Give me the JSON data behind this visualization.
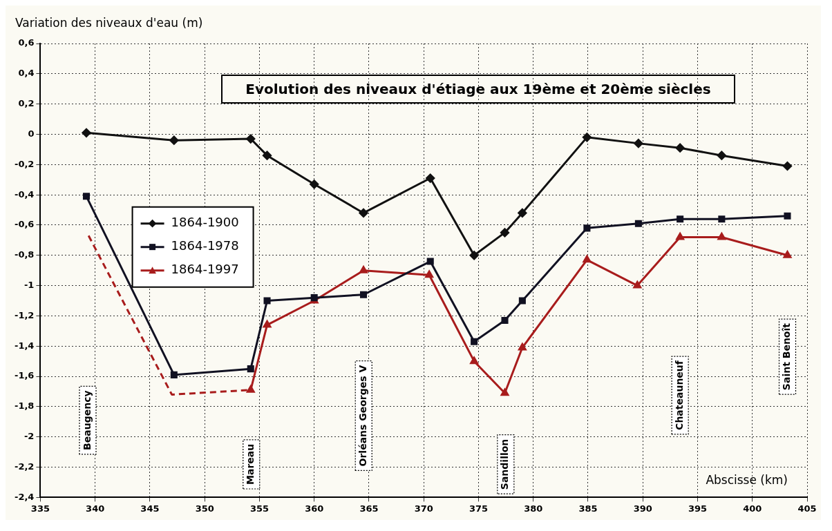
{
  "chart_data": {
    "type": "line",
    "title": "Evolution des niveaux d'étiage aux 19ème et 20ème siècles",
    "xlabel": "Abscisse (km)",
    "ylabel": "Variation des niveaux d'eau (m)",
    "xlim": [
      335,
      405
    ],
    "xticks": [
      335,
      340,
      345,
      350,
      355,
      360,
      365,
      370,
      375,
      380,
      385,
      390,
      395,
      400,
      405
    ],
    "ylim": [
      -2.4,
      0.6
    ],
    "yticks": [
      {
        "value": -2.4,
        "label": "-2,4"
      },
      {
        "value": -2.2,
        "label": "-2,2"
      },
      {
        "value": -2,
        "label": "-2"
      },
      {
        "value": -1.8,
        "label": "-1,8"
      },
      {
        "value": -1.6,
        "label": "-1,6"
      },
      {
        "value": -1.4,
        "label": "-1,4"
      },
      {
        "value": -1.2,
        "label": "-1,2"
      },
      {
        "value": -1,
        "label": "-1"
      },
      {
        "value": -0.8,
        "label": "-0,8"
      },
      {
        "value": -0.6,
        "label": "-0,6"
      },
      {
        "value": -0.4,
        "label": "-0,4"
      },
      {
        "value": -0.2,
        "label": "-0,2"
      },
      0,
      {
        "value": 0.2,
        "label": "0,2"
      },
      {
        "value": 0.4,
        "label": "0,4"
      },
      {
        "value": 0.6,
        "label": "0,6"
      }
    ],
    "grid": true,
    "legend": "left",
    "series": [
      {
        "name": "1864-1900",
        "color": "#111111",
        "marker": "diamond",
        "line_style": "solid",
        "x": [
          339.2,
          347.2,
          354.2,
          355.7,
          360,
          364.5,
          370.6,
          374.6,
          377.4,
          379,
          384.9,
          389.6,
          393.4,
          397.2,
          403.2
        ],
        "values": [
          0.01,
          -0.04,
          -0.03,
          -0.14,
          -0.33,
          -0.52,
          -0.29,
          -0.8,
          -0.65,
          -0.52,
          -0.02,
          -0.06,
          -0.09,
          -0.14,
          -0.21
        ]
      },
      {
        "name": "1864-1978",
        "color": "#111122",
        "marker": "square",
        "line_style": "solid",
        "x": [
          339.2,
          347.2,
          354.2,
          355.7,
          360,
          364.5,
          370.6,
          374.6,
          377.4,
          379,
          384.9,
          389.6,
          393.4,
          397.2,
          403.2
        ],
        "values": [
          -0.41,
          -1.59,
          -1.55,
          -1.1,
          -1.08,
          -1.06,
          -0.84,
          -1.37,
          -1.23,
          -1.1,
          -0.62,
          -0.59,
          -0.56,
          -0.56,
          -0.54
        ]
      },
      {
        "name": "1864-1997",
        "color": "#a81c1c",
        "marker": "triangle",
        "line_style": "solid",
        "x": [
          354.2,
          355.7,
          360,
          364.5,
          370.5,
          374.6,
          377.4,
          379,
          384.9,
          389.5,
          393.4,
          397.2,
          403.2
        ],
        "values": [
          -1.69,
          -1.26,
          -1.1,
          -0.9,
          -0.93,
          -1.5,
          -1.71,
          -1.41,
          -0.83,
          -1,
          -0.68,
          -0.68,
          -0.8
        ]
      },
      {
        "color": "#a81c1c",
        "marker": "none",
        "line_style": "dashed",
        "x": [
          339.4,
          347,
          354.2
        ],
        "values": [
          -0.67,
          -1.72,
          -1.69
        ]
      }
    ],
    "annotations": [
      "Beaugency",
      "Mareau",
      "Orléans Georges V",
      "Sandillon",
      "Chateauneuf",
      "Saint Benoît"
    ]
  }
}
